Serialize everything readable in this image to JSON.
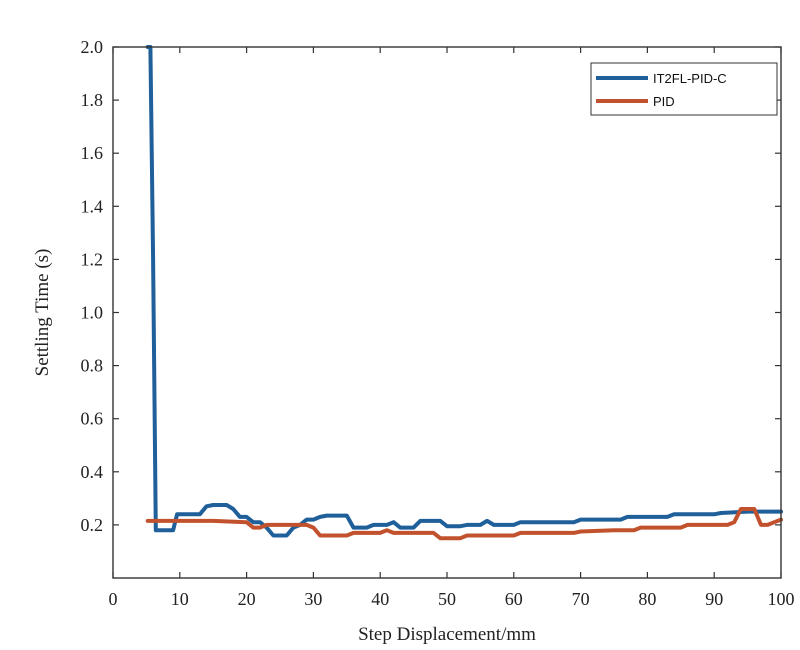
{
  "chart_data": {
    "type": "line",
    "title": "",
    "xlabel": "Step Displacement/mm",
    "ylabel": "Settling Time (s)",
    "xlim": [
      0,
      100
    ],
    "ylim": [
      0,
      2.0
    ],
    "xticks": [
      0,
      10,
      20,
      30,
      40,
      50,
      60,
      70,
      80,
      90,
      100
    ],
    "yticks": [
      0.2,
      0.4,
      0.6,
      0.8,
      1.0,
      1.2,
      1.4,
      1.6,
      1.8,
      2.0
    ],
    "xtick_labels": [
      "0",
      "10",
      "20",
      "30",
      "40",
      "50",
      "60",
      "70",
      "80",
      "90",
      "100"
    ],
    "ytick_labels": [
      "0.2",
      "0.4",
      "0.6",
      "0.8",
      "1.0",
      "1.2",
      "1.4",
      "1.6",
      "1.8",
      "2.0"
    ],
    "legend_position": "top-right",
    "series": [
      {
        "name": "IT2FL-PID-C",
        "color": "#1f5f9a",
        "points": [
          [
            5.2,
            2.0
          ],
          [
            5.6,
            2.0
          ],
          [
            6.0,
            1.2
          ],
          [
            6.4,
            0.18
          ],
          [
            7,
            0.18
          ],
          [
            8,
            0.18
          ],
          [
            9,
            0.18
          ],
          [
            9.6,
            0.24
          ],
          [
            10,
            0.24
          ],
          [
            11,
            0.24
          ],
          [
            12,
            0.24
          ],
          [
            13,
            0.24
          ],
          [
            14,
            0.27
          ],
          [
            15,
            0.275
          ],
          [
            16,
            0.275
          ],
          [
            17,
            0.275
          ],
          [
            18,
            0.26
          ],
          [
            19,
            0.23
          ],
          [
            20,
            0.23
          ],
          [
            21,
            0.21
          ],
          [
            22,
            0.21
          ],
          [
            23,
            0.19
          ],
          [
            24,
            0.16
          ],
          [
            25,
            0.16
          ],
          [
            26,
            0.16
          ],
          [
            27,
            0.19
          ],
          [
            28,
            0.2
          ],
          [
            29,
            0.22
          ],
          [
            30,
            0.22
          ],
          [
            31,
            0.23
          ],
          [
            32,
            0.235
          ],
          [
            33,
            0.235
          ],
          [
            34,
            0.235
          ],
          [
            35,
            0.235
          ],
          [
            36,
            0.19
          ],
          [
            37,
            0.19
          ],
          [
            38,
            0.19
          ],
          [
            39,
            0.2
          ],
          [
            40,
            0.2
          ],
          [
            41,
            0.2
          ],
          [
            42,
            0.21
          ],
          [
            43,
            0.19
          ],
          [
            44,
            0.19
          ],
          [
            45,
            0.19
          ],
          [
            46,
            0.215
          ],
          [
            47,
            0.215
          ],
          [
            48,
            0.215
          ],
          [
            49,
            0.215
          ],
          [
            50,
            0.195
          ],
          [
            51,
            0.195
          ],
          [
            52,
            0.195
          ],
          [
            53,
            0.2
          ],
          [
            54,
            0.2
          ],
          [
            55,
            0.2
          ],
          [
            56,
            0.215
          ],
          [
            57,
            0.2
          ],
          [
            58,
            0.2
          ],
          [
            59,
            0.2
          ],
          [
            60,
            0.2
          ],
          [
            61,
            0.21
          ],
          [
            65,
            0.21
          ],
          [
            69,
            0.21
          ],
          [
            70,
            0.22
          ],
          [
            75,
            0.22
          ],
          [
            76,
            0.22
          ],
          [
            77,
            0.23
          ],
          [
            80,
            0.23
          ],
          [
            83,
            0.23
          ],
          [
            84,
            0.24
          ],
          [
            90,
            0.24
          ],
          [
            91,
            0.245
          ],
          [
            95,
            0.25
          ],
          [
            96,
            0.25
          ],
          [
            100,
            0.25
          ]
        ]
      },
      {
        "name": "PID",
        "color": "#c2522d",
        "points": [
          [
            5.2,
            0.215
          ],
          [
            10,
            0.215
          ],
          [
            15,
            0.215
          ],
          [
            20,
            0.21
          ],
          [
            21,
            0.19
          ],
          [
            22,
            0.19
          ],
          [
            23,
            0.2
          ],
          [
            25,
            0.2
          ],
          [
            28,
            0.2
          ],
          [
            29,
            0.2
          ],
          [
            30,
            0.19
          ],
          [
            31,
            0.16
          ],
          [
            33,
            0.16
          ],
          [
            35,
            0.16
          ],
          [
            36,
            0.17
          ],
          [
            40,
            0.17
          ],
          [
            41,
            0.18
          ],
          [
            42,
            0.17
          ],
          [
            45,
            0.17
          ],
          [
            48,
            0.17
          ],
          [
            49,
            0.15
          ],
          [
            50,
            0.15
          ],
          [
            51,
            0.15
          ],
          [
            52,
            0.15
          ],
          [
            53,
            0.16
          ],
          [
            60,
            0.16
          ],
          [
            61,
            0.17
          ],
          [
            65,
            0.17
          ],
          [
            69,
            0.17
          ],
          [
            70,
            0.175
          ],
          [
            75,
            0.18
          ],
          [
            78,
            0.18
          ],
          [
            79,
            0.19
          ],
          [
            80,
            0.19
          ],
          [
            85,
            0.19
          ],
          [
            86,
            0.2
          ],
          [
            90,
            0.2
          ],
          [
            92,
            0.2
          ],
          [
            93,
            0.21
          ],
          [
            94,
            0.26
          ],
          [
            95,
            0.26
          ],
          [
            96,
            0.26
          ],
          [
            97,
            0.2
          ],
          [
            98,
            0.2
          ],
          [
            99,
            0.21
          ],
          [
            100,
            0.22
          ]
        ]
      }
    ]
  }
}
